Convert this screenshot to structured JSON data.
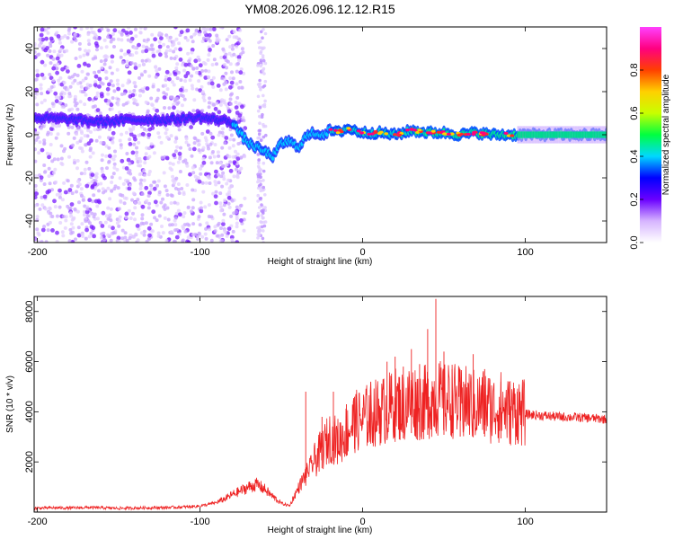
{
  "title": "YM08.2026.096.12.12.R15",
  "chart_data": [
    {
      "type": "heatmap",
      "xlabel": "Height of straight line (km)",
      "ylabel": "Frequency (Hz)",
      "xlim": [
        -202,
        150
      ],
      "ylim": [
        -50,
        50
      ],
      "xticks": [
        -200,
        -100,
        0,
        100
      ],
      "yticks": [
        -40,
        -20,
        0,
        20,
        40
      ],
      "colorbar": {
        "label": "Normalized spectral amplitude",
        "range": [
          0,
          1
        ],
        "ticks": [
          "0.0",
          "0.2",
          "0.4",
          "0.6",
          "0.8"
        ],
        "colors": [
          "#ffffff",
          "#d6b4ff",
          "#6a00ff",
          "#0000ff",
          "#00d8ff",
          "#00ff40",
          "#c8ff00",
          "#ffd000",
          "#ff4000",
          "#ff0080",
          "#ff40ff"
        ]
      },
      "ridge_frequency_hz": {
        "x": [
          -202,
          -180,
          -160,
          -140,
          -120,
          -100,
          -90,
          -80,
          -75,
          -70,
          -65,
          -60,
          -55,
          -50,
          -45,
          -40,
          -35,
          -30,
          -25,
          -20,
          -15,
          -10,
          -5,
          0,
          10,
          20,
          30,
          40,
          50,
          60,
          70,
          80,
          90,
          100,
          120,
          150
        ],
        "y": [
          8,
          7,
          6,
          7,
          7,
          8,
          7,
          6,
          0,
          -4,
          -6,
          -8,
          -10,
          -4,
          -3,
          -6,
          -1,
          1,
          0,
          2,
          1,
          3,
          2,
          1,
          1,
          0,
          2,
          1,
          1,
          0,
          1,
          0,
          0,
          0,
          0,
          0
        ]
      }
    },
    {
      "type": "line",
      "xlabel": "Height of straight line (km)",
      "ylabel": "SNR (10 * v/v)",
      "xlim": [
        -202,
        150
      ],
      "ylim": [
        0,
        8600
      ],
      "xticks": [
        -200,
        -100,
        0,
        100
      ],
      "yticks": [
        2000,
        4000,
        6000,
        8000
      ],
      "color": "#ee2222",
      "x": [
        -202,
        -190,
        -180,
        -170,
        -160,
        -150,
        -140,
        -130,
        -120,
        -110,
        -100,
        -95,
        -90,
        -85,
        -80,
        -75,
        -70,
        -65,
        -60,
        -55,
        -50,
        -45,
        -40,
        -35,
        -30,
        -25,
        -20,
        -15,
        -10,
        -5,
        0,
        5,
        10,
        15,
        20,
        25,
        30,
        35,
        40,
        45,
        50,
        55,
        60,
        65,
        70,
        75,
        80,
        85,
        90,
        95,
        100,
        110,
        120,
        130,
        140,
        150
      ],
      "y": [
        150,
        170,
        160,
        180,
        170,
        150,
        160,
        170,
        180,
        200,
        240,
        300,
        380,
        520,
        700,
        850,
        1000,
        1100,
        900,
        600,
        350,
        250,
        900,
        1500,
        2000,
        2500,
        3000,
        2800,
        3200,
        3600,
        3700,
        3900,
        4000,
        4100,
        4300,
        4200,
        4500,
        4300,
        4400,
        4600,
        4400,
        4500,
        4300,
        4350,
        4200,
        4300,
        4100,
        4200,
        4000,
        4100,
        3900,
        3850,
        3800,
        3780,
        3750,
        3700
      ],
      "spikes": {
        "x": [
          -35,
          -25,
          -18,
          -10,
          -5,
          5,
          15,
          20,
          25,
          30,
          35,
          40,
          45,
          50,
          55,
          60,
          62,
          68,
          75,
          85,
          95
        ],
        "y": [
          4800,
          3800,
          4800,
          4300,
          4600,
          5200,
          6000,
          6200,
          5800,
          6500,
          5900,
          7300,
          8500,
          6400,
          5700,
          5600,
          5200,
          6300,
          5700,
          5200,
          4800
        ]
      }
    }
  ]
}
